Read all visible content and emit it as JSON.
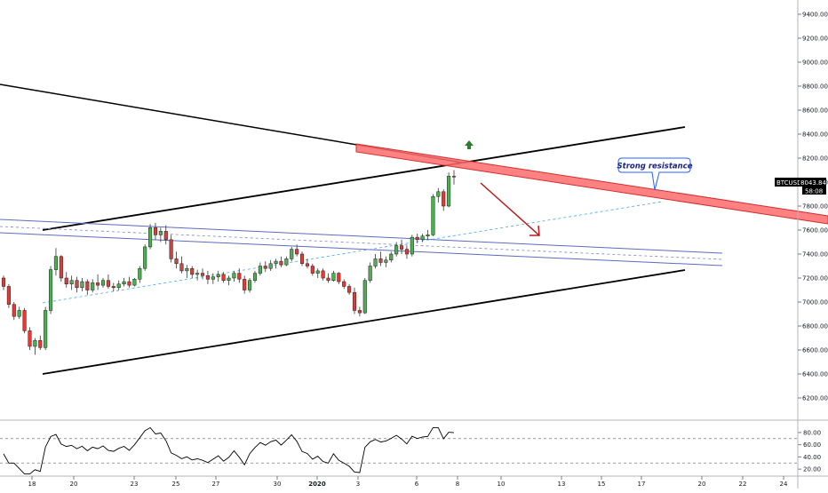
{
  "chart_data": {
    "type": "candlestick",
    "symbol": "BTCUSD",
    "last_price": "8043.84",
    "countdown": "58:08",
    "annotation": "Strong resistance",
    "y_axis": {
      "min": 6100,
      "max": 9500,
      "ticks": [
        6200,
        6400,
        6600,
        6800,
        7000,
        7200,
        7400,
        7600,
        7800,
        8000,
        8200,
        8400,
        8600,
        8800,
        9000,
        9200,
        9400
      ]
    },
    "x_axis": {
      "tick_labels": [
        "18",
        "20",
        "23",
        "25",
        "27",
        "30",
        "2020",
        "3",
        "6",
        "8",
        "10",
        "13",
        "15",
        "17",
        "20",
        "22",
        "24"
      ]
    },
    "rsi": {
      "ticks": [
        20.0,
        40.0,
        60.0,
        80.0
      ],
      "levels": [
        30,
        70
      ]
    },
    "candles": [
      [
        7200,
        7220,
        7100,
        7130
      ],
      [
        7130,
        7150,
        6950,
        6980
      ],
      [
        6980,
        7000,
        6850,
        6880
      ],
      [
        6880,
        6960,
        6860,
        6930
      ],
      [
        6930,
        6950,
        6740,
        6760
      ],
      [
        6760,
        6790,
        6600,
        6630
      ],
      [
        6630,
        6700,
        6560,
        6680
      ],
      [
        6680,
        6720,
        6600,
        6620
      ],
      [
        6620,
        6960,
        6600,
        6930
      ],
      [
        6930,
        7300,
        6900,
        7270
      ],
      [
        7270,
        7450,
        7220,
        7380
      ],
      [
        7380,
        7390,
        7170,
        7200
      ],
      [
        7200,
        7250,
        7120,
        7150
      ],
      [
        7150,
        7220,
        7100,
        7180
      ],
      [
        7180,
        7210,
        7080,
        7120
      ],
      [
        7120,
        7200,
        7090,
        7170
      ],
      [
        7170,
        7190,
        7060,
        7100
      ],
      [
        7100,
        7190,
        7080,
        7160
      ],
      [
        7160,
        7230,
        7100,
        7140
      ],
      [
        7140,
        7200,
        7120,
        7180
      ],
      [
        7180,
        7230,
        7110,
        7130
      ],
      [
        7130,
        7160,
        7090,
        7120
      ],
      [
        7120,
        7180,
        7100,
        7150
      ],
      [
        7150,
        7200,
        7130,
        7170
      ],
      [
        7170,
        7210,
        7120,
        7140
      ],
      [
        7140,
        7200,
        7130,
        7190
      ],
      [
        7190,
        7300,
        7160,
        7280
      ],
      [
        7280,
        7480,
        7260,
        7460
      ],
      [
        7460,
        7650,
        7440,
        7620
      ],
      [
        7620,
        7660,
        7520,
        7560
      ],
      [
        7560,
        7620,
        7500,
        7590
      ],
      [
        7590,
        7640,
        7480,
        7520
      ],
      [
        7520,
        7560,
        7330,
        7360
      ],
      [
        7360,
        7420,
        7280,
        7320
      ],
      [
        7320,
        7380,
        7240,
        7260
      ],
      [
        7260,
        7310,
        7200,
        7280
      ],
      [
        7280,
        7300,
        7200,
        7230
      ],
      [
        7230,
        7270,
        7180,
        7240
      ],
      [
        7240,
        7280,
        7190,
        7220
      ],
      [
        7220,
        7260,
        7150,
        7190
      ],
      [
        7190,
        7240,
        7150,
        7210
      ],
      [
        7210,
        7260,
        7170,
        7230
      ],
      [
        7230,
        7250,
        7160,
        7180
      ],
      [
        7180,
        7220,
        7140,
        7200
      ],
      [
        7200,
        7260,
        7170,
        7240
      ],
      [
        7240,
        7280,
        7160,
        7190
      ],
      [
        7190,
        7220,
        7070,
        7100
      ],
      [
        7100,
        7200,
        7080,
        7180
      ],
      [
        7180,
        7260,
        7160,
        7240
      ],
      [
        7240,
        7330,
        7220,
        7300
      ],
      [
        7300,
        7340,
        7250,
        7280
      ],
      [
        7280,
        7350,
        7260,
        7320
      ],
      [
        7320,
        7360,
        7280,
        7340
      ],
      [
        7340,
        7380,
        7290,
        7310
      ],
      [
        7310,
        7380,
        7300,
        7360
      ],
      [
        7360,
        7460,
        7340,
        7440
      ],
      [
        7440,
        7480,
        7380,
        7400
      ],
      [
        7400,
        7420,
        7300,
        7320
      ],
      [
        7320,
        7360,
        7280,
        7300
      ],
      [
        7300,
        7320,
        7220,
        7240
      ],
      [
        7240,
        7280,
        7200,
        7260
      ],
      [
        7260,
        7280,
        7180,
        7200
      ],
      [
        7200,
        7240,
        7160,
        7180
      ],
      [
        7180,
        7260,
        7170,
        7240
      ],
      [
        7240,
        7250,
        7150,
        7170
      ],
      [
        7170,
        7190,
        7110,
        7130
      ],
      [
        7130,
        7150,
        7060,
        7080
      ],
      [
        7080,
        7120,
        6900,
        6930
      ],
      [
        6930,
        6960,
        6880,
        6910
      ],
      [
        6910,
        7200,
        6900,
        7180
      ],
      [
        7180,
        7330,
        7160,
        7300
      ],
      [
        7300,
        7400,
        7280,
        7360
      ],
      [
        7360,
        7420,
        7300,
        7330
      ],
      [
        7330,
        7380,
        7290,
        7350
      ],
      [
        7350,
        7420,
        7330,
        7400
      ],
      [
        7400,
        7500,
        7380,
        7470
      ],
      [
        7470,
        7520,
        7400,
        7440
      ],
      [
        7440,
        7470,
        7360,
        7400
      ],
      [
        7400,
        7560,
        7380,
        7540
      ],
      [
        7540,
        7570,
        7490,
        7520
      ],
      [
        7520,
        7570,
        7500,
        7550
      ],
      [
        7550,
        7600,
        7520,
        7560
      ],
      [
        7560,
        7900,
        7550,
        7880
      ],
      [
        7880,
        7950,
        7830,
        7920
      ],
      [
        7920,
        7940,
        7760,
        7800
      ],
      [
        7800,
        8080,
        7790,
        8050
      ],
      [
        8050,
        8100,
        7980,
        8044
      ]
    ]
  }
}
